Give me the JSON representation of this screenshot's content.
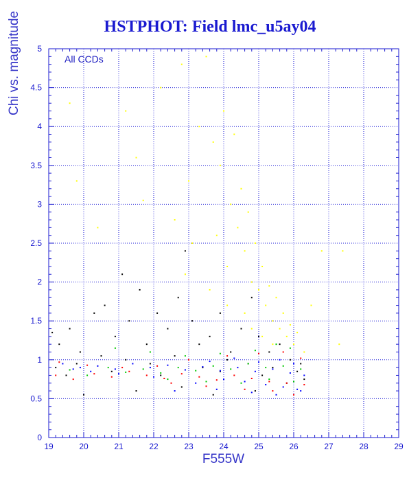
{
  "title": "HSTPHOT: Field lmc_u5ay04",
  "annotation": "All CCDs",
  "chart_data": {
    "type": "scatter",
    "xlabel": "F555W",
    "ylabel": "Chi vs. magnitude",
    "xlim": [
      19,
      29
    ],
    "ylim": [
      0,
      5
    ],
    "xticks": [
      "19",
      "20",
      "21",
      "22",
      "23",
      "24",
      "25",
      "26",
      "27",
      "28",
      "29"
    ],
    "yticks": [
      "0",
      "0.5",
      "1",
      "1.5",
      "2",
      "2.5",
      "3",
      "3.5",
      "4",
      "4.5",
      "5"
    ],
    "grid": true,
    "series": [
      {
        "color": "#000000",
        "points": [
          [
            19.1,
            1.35
          ],
          [
            19.3,
            1.2
          ],
          [
            19.6,
            1.4
          ],
          [
            19.9,
            1.1
          ],
          [
            20.3,
            1.6
          ],
          [
            20.6,
            1.7
          ],
          [
            20.9,
            1.3
          ],
          [
            21.1,
            2.1
          ],
          [
            21.3,
            1.5
          ],
          [
            21.6,
            1.9
          ],
          [
            21.8,
            1.2
          ],
          [
            22.1,
            1.6
          ],
          [
            22.4,
            1.4
          ],
          [
            22.7,
            1.8
          ],
          [
            22.9,
            2.4
          ],
          [
            23.1,
            1.5
          ],
          [
            23.3,
            1.2
          ],
          [
            23.6,
            1.3
          ],
          [
            23.9,
            1.6
          ],
          [
            24.2,
            1.1
          ],
          [
            24.5,
            1.4
          ],
          [
            24.8,
            1.8
          ],
          [
            25.0,
            1.3
          ],
          [
            25.3,
            1.1
          ],
          [
            25.6,
            1.2
          ],
          [
            25.9,
            1.0
          ],
          [
            19.2,
            0.9
          ],
          [
            19.8,
            0.95
          ],
          [
            20.5,
            1.05
          ],
          [
            21.2,
            1.0
          ],
          [
            21.9,
            0.95
          ],
          [
            22.6,
            1.05
          ],
          [
            23.4,
            0.9
          ],
          [
            24.1,
            1.0
          ],
          [
            24.7,
            0.95
          ],
          [
            25.4,
            0.9
          ],
          [
            26.1,
            0.85
          ],
          [
            26.3,
            0.75
          ],
          [
            20.0,
            0.55
          ],
          [
            21.5,
            0.6
          ],
          [
            22.8,
            0.65
          ],
          [
            23.7,
            0.55
          ],
          [
            24.9,
            0.6
          ],
          [
            25.8,
            0.7
          ],
          [
            19.5,
            0.8
          ],
          [
            20.8,
            0.85
          ],
          [
            22.2,
            0.8
          ],
          [
            23.9,
            0.85
          ],
          [
            25.1,
            0.8
          ],
          [
            26.2,
            0.95
          ]
        ]
      },
      {
        "color": "#0000ff",
        "points": [
          [
            19.4,
            0.95
          ],
          [
            19.9,
            0.9
          ],
          [
            20.4,
            0.92
          ],
          [
            20.9,
            0.88
          ],
          [
            21.4,
            0.95
          ],
          [
            21.9,
            0.9
          ],
          [
            22.4,
            0.93
          ],
          [
            22.9,
            0.87
          ],
          [
            23.4,
            0.91
          ],
          [
            23.9,
            0.86
          ],
          [
            24.4,
            0.9
          ],
          [
            24.9,
            0.85
          ],
          [
            25.4,
            0.88
          ],
          [
            25.9,
            0.83
          ],
          [
            26.3,
            0.8
          ],
          [
            23.2,
            0.7
          ],
          [
            24.0,
            0.75
          ],
          [
            24.6,
            0.72
          ],
          [
            25.2,
            0.68
          ],
          [
            25.7,
            0.65
          ],
          [
            26.1,
            0.62
          ],
          [
            22.0,
            0.78
          ],
          [
            21.0,
            0.82
          ],
          [
            20.2,
            0.85
          ],
          [
            19.7,
            0.88
          ],
          [
            23.6,
            0.98
          ],
          [
            24.3,
            1.02
          ],
          [
            25.0,
            0.97
          ],
          [
            25.6,
            1.0
          ],
          [
            26.0,
            0.95
          ],
          [
            22.6,
            0.6
          ],
          [
            23.8,
            0.62
          ],
          [
            24.8,
            0.58
          ],
          [
            25.5,
            0.55
          ],
          [
            26.2,
            0.6
          ]
        ]
      },
      {
        "color": "#ff0000",
        "points": [
          [
            19.2,
            0.8
          ],
          [
            19.7,
            0.75
          ],
          [
            20.3,
            0.82
          ],
          [
            20.8,
            0.78
          ],
          [
            21.3,
            0.85
          ],
          [
            21.8,
            0.8
          ],
          [
            22.3,
            0.76
          ],
          [
            22.8,
            0.82
          ],
          [
            23.3,
            0.78
          ],
          [
            23.8,
            0.74
          ],
          [
            24.3,
            0.8
          ],
          [
            24.8,
            0.76
          ],
          [
            25.3,
            0.72
          ],
          [
            25.8,
            0.7
          ],
          [
            26.3,
            0.68
          ],
          [
            24.1,
            1.05
          ],
          [
            25.0,
            1.08
          ],
          [
            25.7,
            1.1
          ],
          [
            26.2,
            1.02
          ],
          [
            23.0,
            1.0
          ],
          [
            22.1,
            0.92
          ],
          [
            21.1,
            0.9
          ],
          [
            20.1,
            0.93
          ],
          [
            19.3,
            0.97
          ],
          [
            24.6,
            0.62
          ],
          [
            25.4,
            0.6
          ],
          [
            26.0,
            0.55
          ],
          [
            23.5,
            0.66
          ],
          [
            22.5,
            0.7
          ]
        ]
      },
      {
        "color": "#00c800",
        "points": [
          [
            19.6,
            0.87
          ],
          [
            20.1,
            0.8
          ],
          [
            20.7,
            0.9
          ],
          [
            21.2,
            0.84
          ],
          [
            21.7,
            0.88
          ],
          [
            22.2,
            0.83
          ],
          [
            22.7,
            0.9
          ],
          [
            23.2,
            0.86
          ],
          [
            23.7,
            0.92
          ],
          [
            24.2,
            0.88
          ],
          [
            24.7,
            0.95
          ],
          [
            25.2,
            0.9
          ],
          [
            25.7,
            0.92
          ],
          [
            26.2,
            0.88
          ],
          [
            25.5,
            1.2
          ],
          [
            25.9,
            1.15
          ],
          [
            24.9,
            1.12
          ],
          [
            23.9,
            1.08
          ],
          [
            22.9,
            1.05
          ],
          [
            21.9,
            1.1
          ],
          [
            20.9,
            1.15
          ],
          [
            25.3,
            0.75
          ],
          [
            24.5,
            0.7
          ],
          [
            23.5,
            0.72
          ],
          [
            22.4,
            0.75
          ],
          [
            26.0,
            0.72
          ]
        ]
      },
      {
        "color": "#ffff00",
        "points": [
          [
            19.6,
            4.3
          ],
          [
            21.2,
            4.2
          ],
          [
            21.7,
            3.05
          ],
          [
            22.2,
            4.5
          ],
          [
            22.6,
            2.8
          ],
          [
            22.8,
            4.8
          ],
          [
            23.0,
            3.3
          ],
          [
            23.3,
            4.0
          ],
          [
            23.5,
            4.9
          ],
          [
            23.7,
            3.8
          ],
          [
            23.8,
            2.6
          ],
          [
            23.9,
            3.5
          ],
          [
            24.0,
            4.2
          ],
          [
            24.1,
            2.2
          ],
          [
            24.2,
            3.0
          ],
          [
            24.3,
            3.9
          ],
          [
            24.4,
            2.7
          ],
          [
            24.5,
            3.2
          ],
          [
            24.6,
            2.4
          ],
          [
            24.7,
            2.9
          ],
          [
            24.8,
            2.0
          ],
          [
            24.9,
            2.5
          ],
          [
            25.0,
            1.9
          ],
          [
            25.1,
            2.2
          ],
          [
            25.2,
            1.7
          ],
          [
            25.3,
            1.95
          ],
          [
            25.4,
            1.5
          ],
          [
            25.5,
            1.8
          ],
          [
            25.6,
            1.4
          ],
          [
            25.7,
            1.6
          ],
          [
            25.8,
            1.3
          ],
          [
            25.9,
            1.45
          ],
          [
            26.0,
            1.2
          ],
          [
            26.1,
            1.35
          ],
          [
            26.3,
            1.1
          ],
          [
            26.5,
            1.7
          ],
          [
            26.8,
            2.4
          ],
          [
            27.4,
            2.4
          ],
          [
            27.3,
            1.2
          ],
          [
            24.6,
            1.6
          ],
          [
            24.8,
            1.4
          ],
          [
            25.1,
            1.3
          ],
          [
            25.4,
            1.2
          ],
          [
            23.6,
            1.9
          ],
          [
            24.1,
            1.7
          ],
          [
            22.9,
            2.1
          ],
          [
            20.4,
            2.7
          ],
          [
            19.8,
            3.3
          ],
          [
            21.5,
            3.6
          ],
          [
            23.1,
            2.5
          ]
        ]
      }
    ]
  }
}
